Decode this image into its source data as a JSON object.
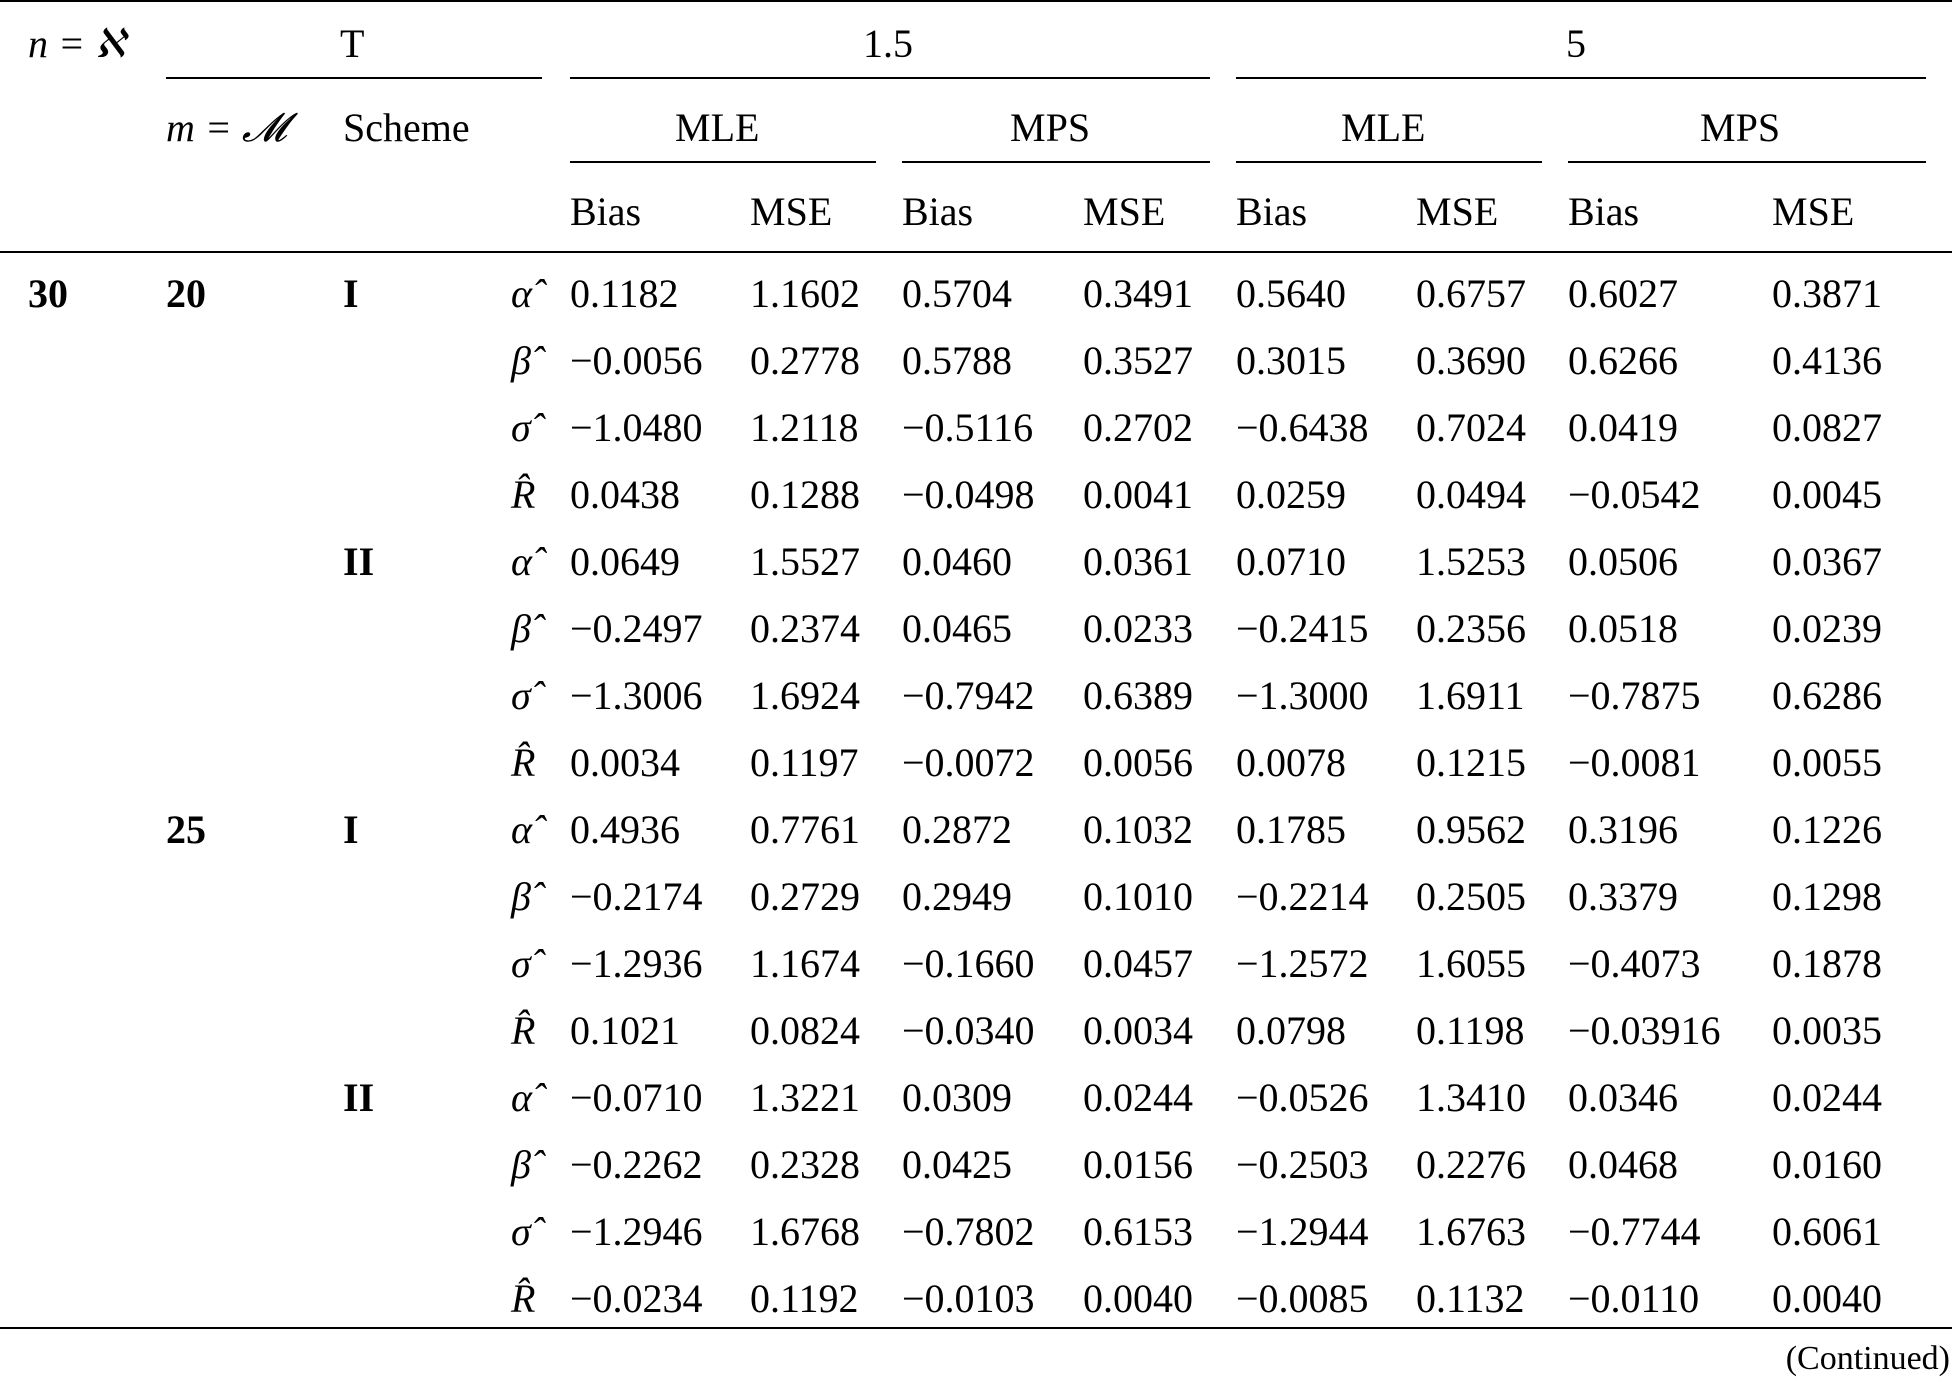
{
  "header": {
    "n_label": "n = ℵ",
    "t_label": "T",
    "m_label": "m = 𝓜",
    "scheme_label": "Scheme",
    "t_values": [
      "1.5",
      "5"
    ],
    "method_labels": [
      "MLE",
      "MPS",
      "MLE",
      "MPS"
    ],
    "stat_labels": [
      "Bias",
      "MSE",
      "Bias",
      "MSE",
      "Bias",
      "MSE",
      "Bias",
      "MSE"
    ]
  },
  "groups": [
    {
      "n": "30",
      "m": "20",
      "scheme": "I",
      "rows": [
        {
          "param": "α̂",
          "values": [
            "0.1182",
            "1.1602",
            "0.5704",
            "0.3491",
            "0.5640",
            "0.6757",
            "0.6027",
            "0.3871"
          ]
        },
        {
          "param": "β̂",
          "values": [
            "−0.0056",
            "0.2778",
            "0.5788",
            "0.3527",
            "0.3015",
            "0.3690",
            "0.6266",
            "0.4136"
          ]
        },
        {
          "param": "σ̂",
          "values": [
            "−1.0480",
            "1.2118",
            "−0.5116",
            "0.2702",
            "−0.6438",
            "0.7024",
            "0.0419",
            "0.0827"
          ]
        },
        {
          "param": "R̂",
          "values": [
            "0.0438",
            "0.1288",
            "−0.0498",
            "0.0041",
            "0.0259",
            "0.0494",
            "−0.0542",
            "0.0045"
          ]
        }
      ]
    },
    {
      "n": "",
      "m": "",
      "scheme": "II",
      "rows": [
        {
          "param": "α̂",
          "values": [
            "0.0649",
            "1.5527",
            "0.0460",
            "0.0361",
            "0.0710",
            "1.5253",
            "0.0506",
            "0.0367"
          ]
        },
        {
          "param": "β̂",
          "values": [
            "−0.2497",
            "0.2374",
            "0.0465",
            "0.0233",
            "−0.2415",
            "0.2356",
            "0.0518",
            "0.0239"
          ]
        },
        {
          "param": "σ̂",
          "values": [
            "−1.3006",
            "1.6924",
            "−0.7942",
            "0.6389",
            "−1.3000",
            "1.6911",
            "−0.7875",
            "0.6286"
          ]
        },
        {
          "param": "R̂",
          "values": [
            "0.0034",
            "0.1197",
            "−0.0072",
            "0.0056",
            "0.0078",
            "0.1215",
            "−0.0081",
            "0.0055"
          ]
        }
      ]
    },
    {
      "n": "",
      "m": "25",
      "scheme": "I",
      "rows": [
        {
          "param": "α̂",
          "values": [
            "0.4936",
            "0.7761",
            "0.2872",
            "0.1032",
            "0.1785",
            "0.9562",
            "0.3196",
            "0.1226"
          ]
        },
        {
          "param": "β̂",
          "values": [
            "−0.2174",
            "0.2729",
            "0.2949",
            "0.1010",
            "−0.2214",
            "0.2505",
            "0.3379",
            "0.1298"
          ]
        },
        {
          "param": "σ̂",
          "values": [
            "−1.2936",
            "1.1674",
            "−0.1660",
            "0.0457",
            "−1.2572",
            "1.6055",
            "−0.4073",
            "0.1878"
          ]
        },
        {
          "param": "R̂",
          "values": [
            "0.1021",
            "0.0824",
            "−0.0340",
            "0.0034",
            "0.0798",
            "0.1198",
            "−0.03916",
            "0.0035"
          ]
        }
      ]
    },
    {
      "n": "",
      "m": "",
      "scheme": "II",
      "rows": [
        {
          "param": "α̂",
          "values": [
            "−0.0710",
            "1.3221",
            "0.0309",
            "0.0244",
            "−0.0526",
            "1.3410",
            "0.0346",
            "0.0244"
          ]
        },
        {
          "param": "β̂",
          "values": [
            "−0.2262",
            "0.2328",
            "0.0425",
            "0.0156",
            "−0.2503",
            "0.2276",
            "0.0468",
            "0.0160"
          ]
        },
        {
          "param": "σ̂",
          "values": [
            "−1.2946",
            "1.6768",
            "−0.7802",
            "0.6153",
            "−1.2944",
            "1.6763",
            "−0.7744",
            "0.6061"
          ]
        },
        {
          "param": "R̂",
          "values": [
            "−0.0234",
            "0.1192",
            "−0.0103",
            "0.0040",
            "−0.0085",
            "0.1132",
            "−0.0110",
            "0.0040"
          ]
        }
      ]
    }
  ],
  "footer": {
    "continued": "(Continued)"
  }
}
